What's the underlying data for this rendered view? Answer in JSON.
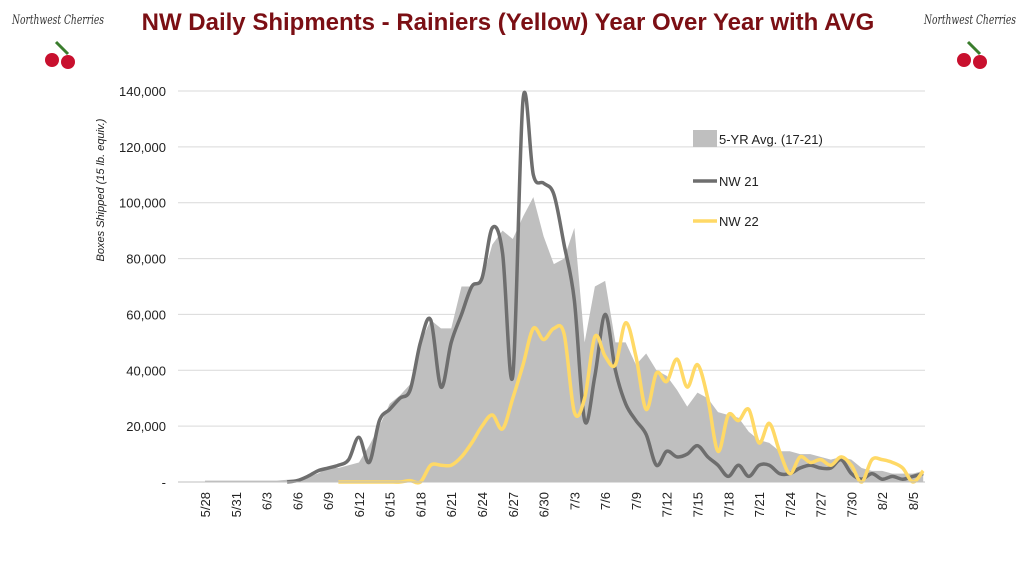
{
  "chart_data": {
    "type": "line",
    "title": "NW Daily Shipments - Rainiers (Yellow) Year Over Year with AVG",
    "logo_text": "Northwest Cherries",
    "y_label": "Boxes Shipped (15 lb. equiv.)",
    "categories": [
      "5/28",
      null,
      null,
      "5/31",
      null,
      null,
      "6/3",
      null,
      null,
      "6/6",
      null,
      null,
      "6/9",
      null,
      null,
      "6/12",
      null,
      null,
      "6/15",
      null,
      null,
      "6/18",
      null,
      null,
      "6/21",
      null,
      null,
      "6/24",
      null,
      null,
      "6/27",
      null,
      null,
      "6/30",
      null,
      null,
      "7/3",
      null,
      null,
      "7/6",
      null,
      null,
      "7/9",
      null,
      null,
      "7/12",
      null,
      null,
      "7/15",
      null,
      null,
      "7/18",
      null,
      null,
      "7/21",
      null,
      null,
      "7/24",
      null,
      null,
      "7/27",
      null,
      null,
      "7/30",
      null,
      null,
      "8/2",
      null,
      null,
      "8/5",
      null
    ],
    "series": [
      {
        "name": "5-YR Avg. (17-21)",
        "kind": "area",
        "color": "#bfbfbf",
        "values": [
          500,
          500,
          500,
          500,
          500,
          500,
          500,
          500,
          800,
          1000,
          2000,
          3000,
          5000,
          5000,
          6000,
          7000,
          13000,
          20000,
          28000,
          31000,
          35000,
          50000,
          58000,
          55000,
          55000,
          70000,
          70000,
          72000,
          85000,
          90000,
          87000,
          95000,
          102000,
          88000,
          78000,
          80000,
          91000,
          50000,
          70000,
          72000,
          50000,
          50000,
          42000,
          46000,
          40000,
          38000,
          33000,
          27000,
          32000,
          30000,
          25000,
          24000,
          23000,
          18000,
          15000,
          14000,
          11000,
          11000,
          10000,
          10000,
          9000,
          8000,
          9000,
          8000,
          5000,
          4000,
          4000,
          3000,
          3000,
          3000,
          4000
        ]
      },
      {
        "name": "NW 21",
        "kind": "line",
        "color": "#6e6e6e",
        "values": [
          null,
          null,
          null,
          null,
          null,
          null,
          null,
          null,
          0,
          500,
          2000,
          4000,
          5000,
          6000,
          8000,
          16000,
          7000,
          22000,
          26000,
          30000,
          33000,
          50000,
          58000,
          34000,
          50000,
          60000,
          70000,
          73000,
          91000,
          82000,
          38000,
          137000,
          110000,
          107000,
          103000,
          85000,
          65000,
          22000,
          38000,
          60000,
          40000,
          28000,
          22000,
          17000,
          6000,
          11000,
          9000,
          10000,
          13000,
          9000,
          6000,
          2000,
          6000,
          2000,
          6000,
          6000,
          3000,
          3000,
          5000,
          6000,
          5000,
          5000,
          8000,
          3000,
          1000,
          3000,
          1000,
          2000,
          1000,
          2000,
          3000
        ]
      },
      {
        "name": "NW 22",
        "kind": "line",
        "color": "#ffd966",
        "values": [
          null,
          null,
          null,
          null,
          null,
          null,
          null,
          null,
          null,
          null,
          null,
          null,
          null,
          0,
          0,
          0,
          0,
          0,
          0,
          0,
          500,
          0,
          6000,
          6000,
          6000,
          9000,
          14000,
          20000,
          24000,
          19000,
          30000,
          42000,
          55000,
          51000,
          55000,
          53000,
          25000,
          30000,
          52000,
          45000,
          42000,
          57000,
          45000,
          26000,
          39000,
          36000,
          44000,
          34000,
          42000,
          30000,
          11000,
          24000,
          22000,
          26000,
          14000,
          21000,
          11000,
          3000,
          9000,
          7000,
          8000,
          6000,
          9000,
          6000,
          0,
          8000,
          8000,
          7000,
          5000,
          0,
          4000
        ]
      }
    ],
    "ylim": [
      0,
      140000
    ],
    "yticks": [
      {
        "value": 0,
        "label": "-"
      },
      {
        "value": 20000,
        "label": "20,000"
      },
      {
        "value": 40000,
        "label": "40,000"
      },
      {
        "value": 60000,
        "label": "60,000"
      },
      {
        "value": 80000,
        "label": "80,000"
      },
      {
        "value": 100000,
        "label": "100,000"
      },
      {
        "value": 120000,
        "label": "120,000"
      },
      {
        "value": 140000,
        "label": "140,000"
      }
    ],
    "grid": true
  }
}
